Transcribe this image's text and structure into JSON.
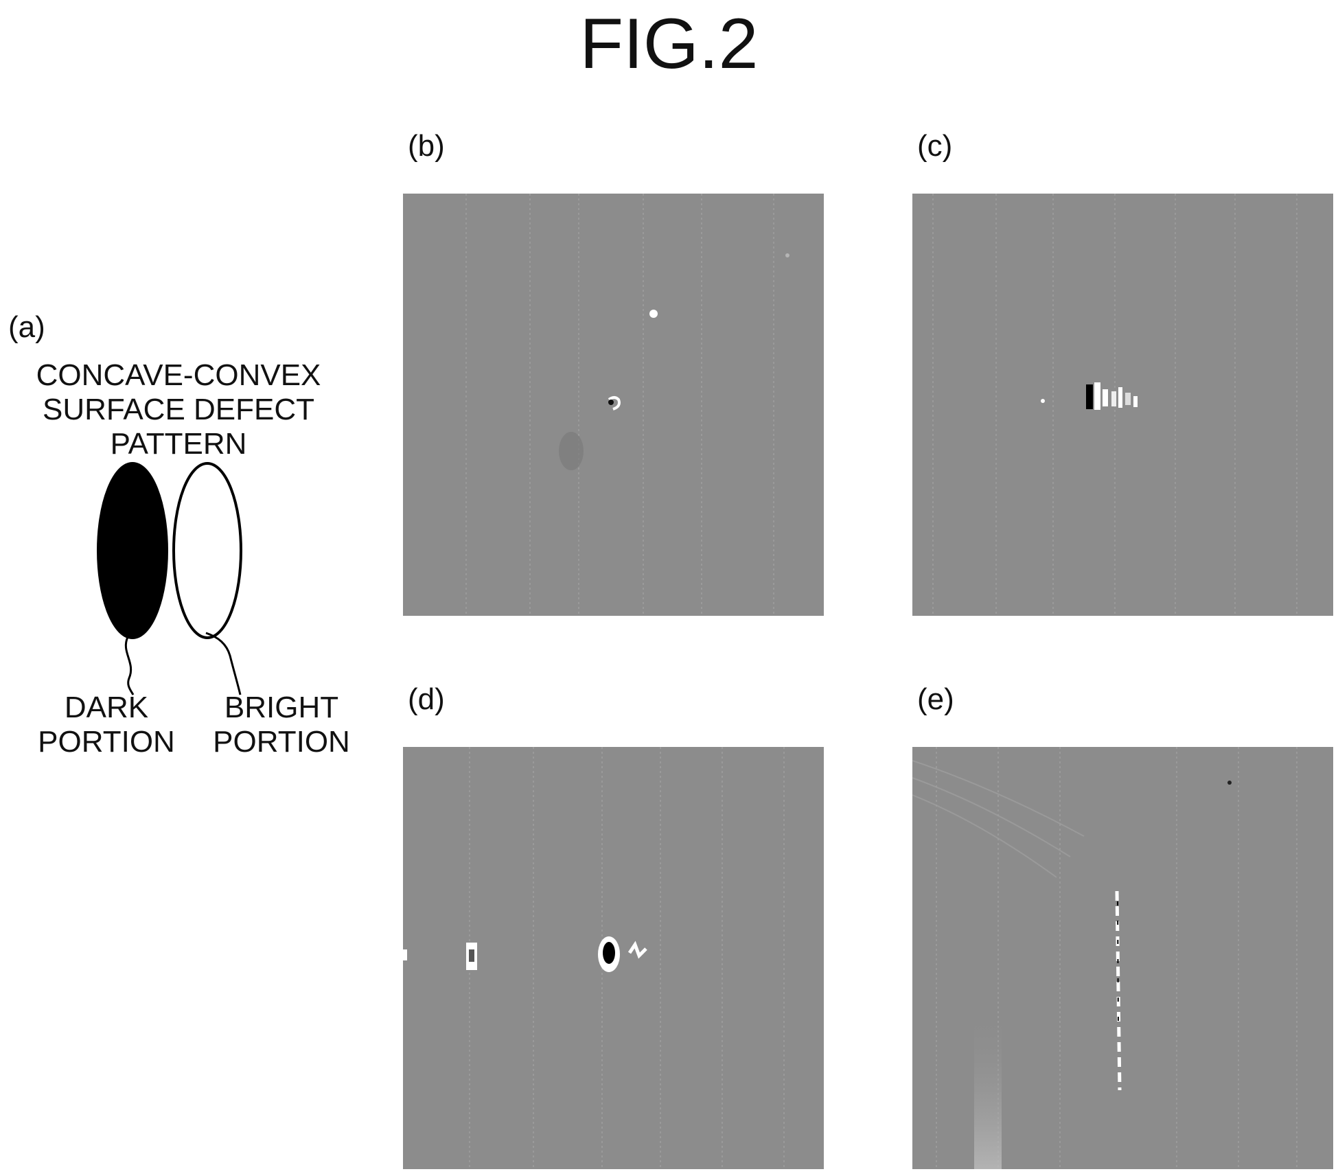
{
  "figure": {
    "title": "FIG.2"
  },
  "panel_a": {
    "label": "(a)",
    "caption": "CONCAVE-CONVEX\nSURFACE DEFECT\nPATTERN",
    "dark_label": "DARK\nPORTION",
    "bright_label": "BRIGHT\nPORTION"
  },
  "panel_b": {
    "label": "(b)"
  },
  "panel_c": {
    "label": "(c)"
  },
  "panel_d": {
    "label": "(d)"
  },
  "panel_e": {
    "label": "(e)"
  },
  "colors": {
    "photo_gray": "#8c8c8c",
    "dark": "#000000",
    "bright": "#ffffff"
  }
}
